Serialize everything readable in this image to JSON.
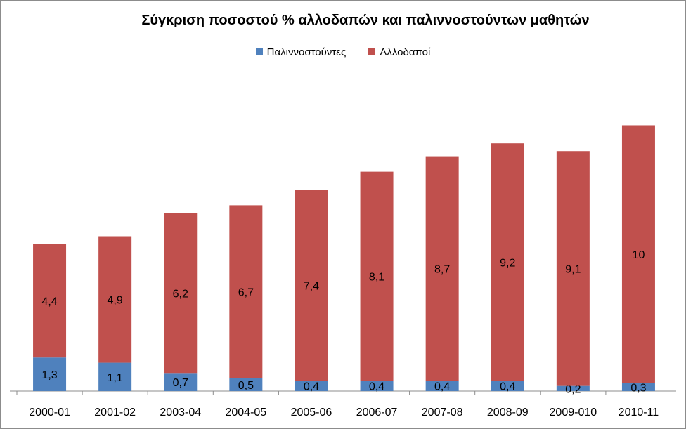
{
  "chart_data": {
    "type": "bar",
    "stacked": true,
    "title": "Σύγκριση ποσοστού %  αλλοδαπών και παλιννοστούντων μαθητών",
    "categories": [
      "2000-01",
      "2001-02",
      "2003-04",
      "2004-05",
      "2005-06",
      "2006-07",
      "2007-08",
      "2008-09",
      "2009-010",
      "2010-11"
    ],
    "series": [
      {
        "name": "Παλιννοστούντες",
        "color": "#4f81bd",
        "values": [
          1.3,
          1.1,
          0.7,
          0.5,
          0.4,
          0.4,
          0.4,
          0.4,
          0.2,
          0.3
        ],
        "labels": [
          "1,3",
          "1,1",
          "0,7",
          "0,5",
          "0,4",
          "0,4",
          "0,4",
          "0,4",
          "0,2",
          "0,3"
        ]
      },
      {
        "name": "Αλλοδαποί",
        "color": "#c0504d",
        "values": [
          4.4,
          4.9,
          6.2,
          6.7,
          7.4,
          8.1,
          8.7,
          9.2,
          9.1,
          10
        ],
        "labels": [
          "4,4",
          "4,9",
          "6,2",
          "6,7",
          "7,4",
          "8,1",
          "8,7",
          "9,2",
          "9,1",
          "10"
        ]
      }
    ],
    "legend_position": "top",
    "grid": false
  }
}
